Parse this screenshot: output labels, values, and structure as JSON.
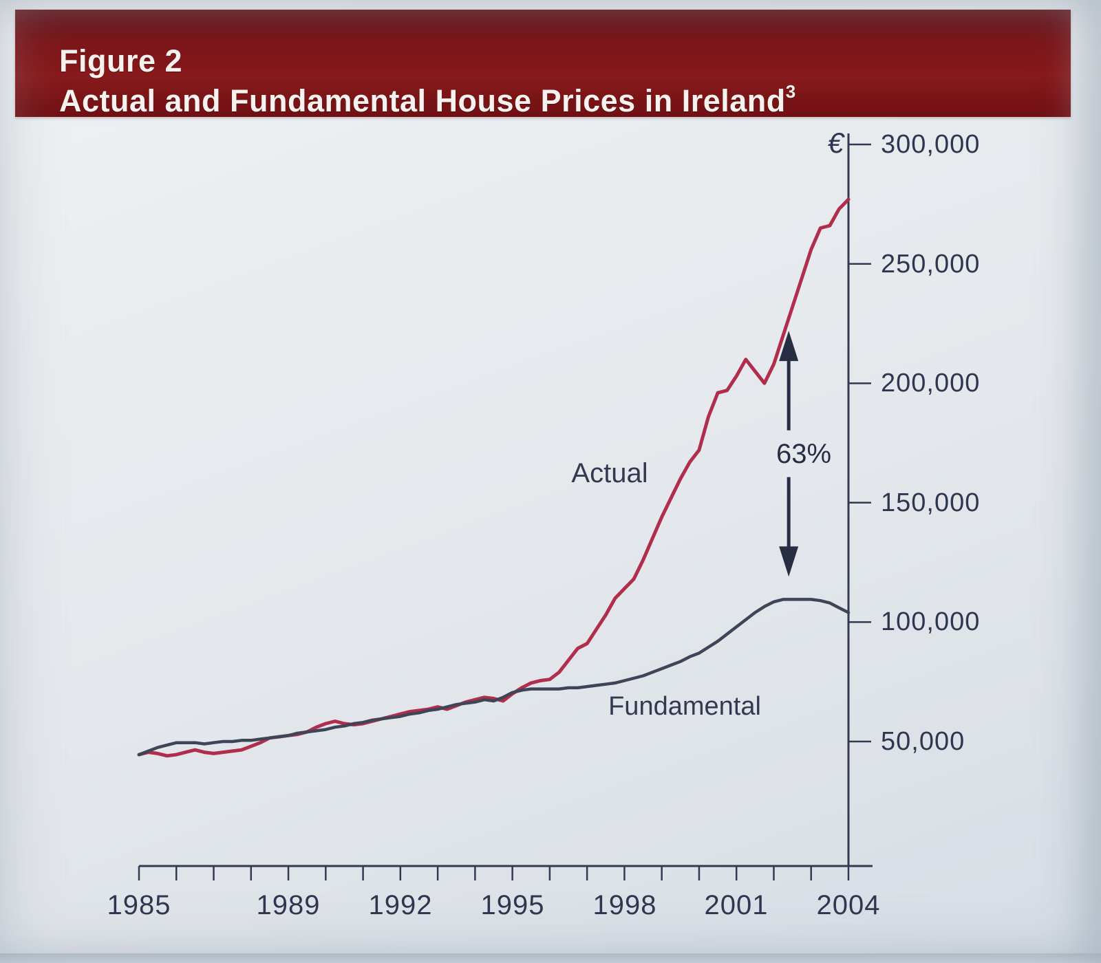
{
  "figure": {
    "figure_label": "Figure 2",
    "title": "Actual and Fundamental House Prices in Ireland",
    "footnote_marker": "3"
  },
  "chart_data": {
    "type": "line",
    "title": "Actual and Fundamental House Prices in Ireland",
    "currency_symbol": "€",
    "xlim": [
      1985,
      2004.6
    ],
    "ylim": [
      0,
      305000
    ],
    "grid": false,
    "legend_position": "inline-labels",
    "y_axis_side": "right",
    "y_ticks": [
      {
        "value": 300000,
        "label": "300,000"
      },
      {
        "value": 250000,
        "label": "250,000"
      },
      {
        "value": 200000,
        "label": "200,000"
      },
      {
        "value": 150000,
        "label": "150,000"
      },
      {
        "value": 100000,
        "label": "100,000"
      },
      {
        "value": 50000,
        "label": "50,000"
      }
    ],
    "x_tick_years": [
      1985,
      1986,
      1987,
      1988,
      1989,
      1990,
      1991,
      1992,
      1993,
      1994,
      1995,
      1996,
      1997,
      1998,
      1999,
      2000,
      2001,
      2002,
      2003,
      2004
    ],
    "x_tick_labels": [
      {
        "year": 1985,
        "label": "1985"
      },
      {
        "year": 1989,
        "label": "1989"
      },
      {
        "year": 1992,
        "label": "1992"
      },
      {
        "year": 1995,
        "label": "1995"
      },
      {
        "year": 1998,
        "label": "1998"
      },
      {
        "year": 2001,
        "label": "2001"
      },
      {
        "year": 2004,
        "label": "2004"
      }
    ],
    "x": [
      1985,
      1985.25,
      1985.5,
      1985.75,
      1986,
      1986.25,
      1986.5,
      1986.75,
      1987,
      1987.25,
      1987.5,
      1987.75,
      1988,
      1988.25,
      1988.5,
      1988.75,
      1989,
      1989.25,
      1989.5,
      1989.75,
      1990,
      1990.25,
      1990.5,
      1990.75,
      1991,
      1991.25,
      1991.5,
      1991.75,
      1992,
      1992.25,
      1992.5,
      1992.75,
      1993,
      1993.25,
      1993.5,
      1993.75,
      1994,
      1994.25,
      1994.5,
      1994.75,
      1995,
      1995.25,
      1995.5,
      1995.75,
      1996,
      1996.25,
      1996.5,
      1996.75,
      1997,
      1997.25,
      1997.5,
      1997.75,
      1998,
      1998.25,
      1998.5,
      1998.75,
      1999,
      1999.25,
      1999.5,
      1999.75,
      2000,
      2000.25,
      2000.5,
      2000.75,
      2001,
      2001.25,
      2001.5,
      2001.75,
      2002,
      2002.25,
      2002.5,
      2002.75,
      2003,
      2003.25,
      2003.5,
      2003.75,
      2004
    ],
    "series": [
      {
        "name": "Actual",
        "color": "#b12d4c",
        "values": [
          44500,
          45500,
          45000,
          44000,
          44500,
          45500,
          46500,
          45500,
          45000,
          45500,
          46000,
          46500,
          48000,
          49500,
          51500,
          52000,
          52500,
          53000,
          54000,
          56000,
          57500,
          58500,
          57500,
          57000,
          57500,
          58500,
          59500,
          60500,
          61500,
          62500,
          63000,
          63500,
          64500,
          63500,
          65000,
          66500,
          67500,
          68500,
          68000,
          67000,
          70000,
          72500,
          74500,
          75500,
          76000,
          79000,
          84000,
          89000,
          91000,
          97000,
          103000,
          110000,
          114000,
          118000,
          126000,
          135000,
          144000,
          152000,
          160000,
          167000,
          172000,
          186000,
          196000,
          197000,
          203000,
          210000,
          205000,
          200000,
          208000,
          220000,
          232000,
          244000,
          256000,
          265000,
          266000,
          273000,
          277000
        ]
      },
      {
        "name": "Fundamental",
        "color": "#3d4556",
        "values": [
          44500,
          46000,
          47500,
          48500,
          49500,
          49500,
          49500,
          49000,
          49500,
          50000,
          50000,
          50500,
          50500,
          51000,
          51500,
          52000,
          52500,
          53500,
          54000,
          54500,
          55000,
          56000,
          56500,
          57500,
          58000,
          59000,
          59500,
          60000,
          60500,
          61500,
          62000,
          63000,
          63500,
          64500,
          65500,
          66000,
          66500,
          67500,
          67000,
          68500,
          70500,
          71500,
          72000,
          72000,
          72000,
          72000,
          72500,
          72500,
          73000,
          73500,
          74000,
          74500,
          75500,
          76500,
          77500,
          79000,
          80500,
          82000,
          83500,
          85500,
          87000,
          89500,
          92000,
          95000,
          98000,
          101000,
          104000,
          106500,
          108500,
          109500,
          109500,
          109500,
          109500,
          109000,
          108000,
          106000,
          104000
        ]
      }
    ],
    "annotation": {
      "text": "63%",
      "style": "double-headed-vertical-arrow",
      "x_year": 2002.4,
      "value_top": 222000,
      "value_bottom": 119000,
      "color": "#272e44"
    },
    "colors": {
      "band_maroon": "#7a1215",
      "axis_navy": "#2f3650",
      "page_background": "#e6e9ed"
    }
  }
}
